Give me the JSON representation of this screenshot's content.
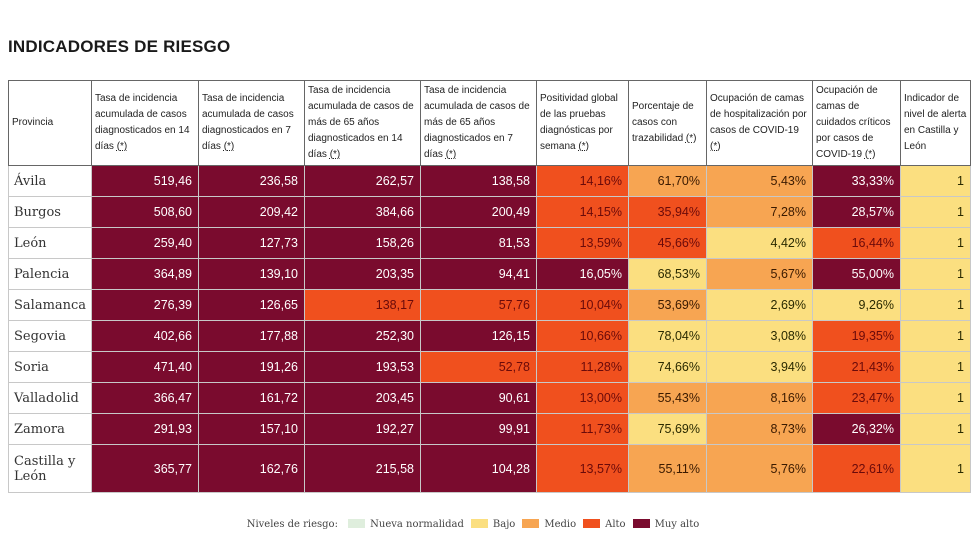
{
  "title": "INDICADORES DE RIESGO",
  "colors": {
    "muy_alto": "#7a0b2e",
    "alto": "#f0501e",
    "medio": "#f7a552",
    "bajo": "#fbdf80",
    "nueva_normalidad": "#dfeedd"
  },
  "columns": [
    {
      "text": "Provincia",
      "ast": ""
    },
    {
      "text": "Tasa de incidencia acumulada de casos diagnosticados en 14 días ",
      "ast": "(*)"
    },
    {
      "text": "Tasa de incidencia acumulada de casos diagnosticados en 7 días ",
      "ast": "(*)"
    },
    {
      "text": "Tasa de incidencia acumulada de casos de más de 65 años diagnosticados en 14 días ",
      "ast": "(*)"
    },
    {
      "text": "Tasa de incidencia acumulada de casos de más de 65 años diagnosticados en 7 días ",
      "ast": "(*)"
    },
    {
      "text": "Positividad global de las pruebas diagnósticas por semana ",
      "ast": "(*)"
    },
    {
      "text": "Porcentaje de casos con trazabilidad ",
      "ast": "(*)"
    },
    {
      "text": "Ocupación de camas de hospitalización por casos de COVID-19 ",
      "ast": "(*)"
    },
    {
      "text": "Ocupación de camas de cuidados críticos por casos de COVID-19 ",
      "ast": "(*)"
    },
    {
      "text": "Indicador de nivel de alerta en Castilla y León",
      "ast": ""
    }
  ],
  "rows": [
    {
      "provincia": "Ávila",
      "values": [
        "519,46",
        "236,58",
        "262,57",
        "138,58",
        "14,16%",
        "61,70%",
        "5,43%",
        "33,33%",
        "1"
      ],
      "levels": [
        "muyalto",
        "muyalto",
        "muyalto",
        "muyalto",
        "alto",
        "medio",
        "medio",
        "muyalto",
        "bajo"
      ]
    },
    {
      "provincia": "Burgos",
      "values": [
        "508,60",
        "209,42",
        "384,66",
        "200,49",
        "14,15%",
        "35,94%",
        "7,28%",
        "28,57%",
        "1"
      ],
      "levels": [
        "muyalto",
        "muyalto",
        "muyalto",
        "muyalto",
        "alto",
        "alto",
        "medio",
        "muyalto",
        "bajo"
      ]
    },
    {
      "provincia": "León",
      "values": [
        "259,40",
        "127,73",
        "158,26",
        "81,53",
        "13,59%",
        "45,66%",
        "4,42%",
        "16,44%",
        "1"
      ],
      "levels": [
        "muyalto",
        "muyalto",
        "muyalto",
        "muyalto",
        "alto",
        "alto",
        "bajo",
        "alto",
        "bajo"
      ]
    },
    {
      "provincia": "Palencia",
      "values": [
        "364,89",
        "139,10",
        "203,35",
        "94,41",
        "16,05%",
        "68,53%",
        "5,67%",
        "55,00%",
        "1"
      ],
      "levels": [
        "muyalto",
        "muyalto",
        "muyalto",
        "muyalto",
        "muyalto",
        "bajo",
        "medio",
        "muyalto",
        "bajo"
      ]
    },
    {
      "provincia": "Salamanca",
      "values": [
        "276,39",
        "126,65",
        "138,17",
        "57,76",
        "10,04%",
        "53,69%",
        "2,69%",
        "9,26%",
        "1"
      ],
      "levels": [
        "muyalto",
        "muyalto",
        "alto",
        "alto",
        "alto",
        "medio",
        "bajo",
        "bajo",
        "bajo"
      ]
    },
    {
      "provincia": "Segovia",
      "values": [
        "402,66",
        "177,88",
        "252,30",
        "126,15",
        "10,66%",
        "78,04%",
        "3,08%",
        "19,35%",
        "1"
      ],
      "levels": [
        "muyalto",
        "muyalto",
        "muyalto",
        "muyalto",
        "alto",
        "bajo",
        "bajo",
        "alto",
        "bajo"
      ]
    },
    {
      "provincia": "Soria",
      "values": [
        "471,40",
        "191,26",
        "193,53",
        "52,78",
        "11,28%",
        "74,66%",
        "3,94%",
        "21,43%",
        "1"
      ],
      "levels": [
        "muyalto",
        "muyalto",
        "muyalto",
        "alto",
        "alto",
        "bajo",
        "bajo",
        "alto",
        "bajo"
      ]
    },
    {
      "provincia": "Valladolid",
      "values": [
        "366,47",
        "161,72",
        "203,45",
        "90,61",
        "13,00%",
        "55,43%",
        "8,16%",
        "23,47%",
        "1"
      ],
      "levels": [
        "muyalto",
        "muyalto",
        "muyalto",
        "muyalto",
        "alto",
        "medio",
        "medio",
        "alto",
        "bajo"
      ]
    },
    {
      "provincia": "Zamora",
      "values": [
        "291,93",
        "157,10",
        "192,27",
        "99,91",
        "11,73%",
        "75,69%",
        "8,73%",
        "26,32%",
        "1"
      ],
      "levels": [
        "muyalto",
        "muyalto",
        "muyalto",
        "muyalto",
        "alto",
        "bajo",
        "medio",
        "muyalto",
        "bajo"
      ]
    },
    {
      "provincia": "Castilla y León",
      "values": [
        "365,77",
        "162,76",
        "215,58",
        "104,28",
        "13,57%",
        "55,11%",
        "5,76%",
        "22,61%",
        "1"
      ],
      "levels": [
        "muyalto",
        "muyalto",
        "muyalto",
        "muyalto",
        "alto",
        "medio",
        "medio",
        "alto",
        "bajo"
      ]
    }
  ],
  "legend": {
    "label": "Niveles de riesgo:",
    "items": [
      {
        "label": "Nueva normalidad",
        "level": "nueva"
      },
      {
        "label": "Bajo",
        "level": "bajo"
      },
      {
        "label": "Medio",
        "level": "medio"
      },
      {
        "label": "Alto",
        "level": "alto"
      },
      {
        "label": "Muy alto",
        "level": "muyalto"
      }
    ]
  }
}
